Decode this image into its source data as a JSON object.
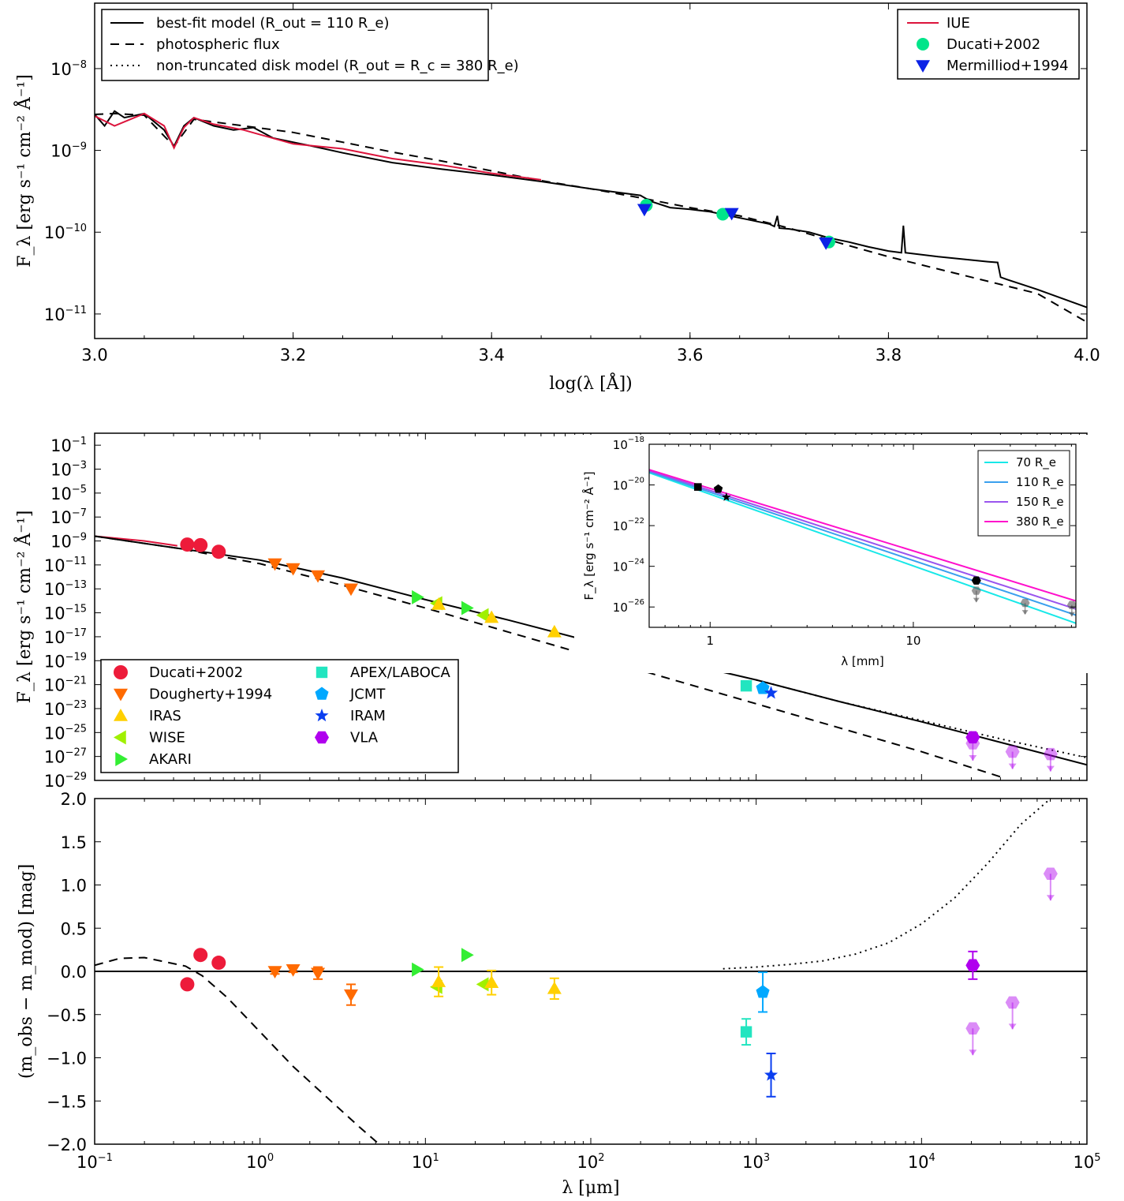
{
  "chart_data": [
    {
      "panel": "top",
      "type": "line",
      "xlabel": "log(λ [Å])",
      "ylabel": "F_λ [erg s⁻¹ cm⁻² Å⁻¹]",
      "xlim": [
        3.0,
        4.0
      ],
      "ylim_log10": [
        -11.3,
        -7.2
      ],
      "y_scale": "log",
      "x_ticks": [
        "3.0",
        "3.2",
        "3.4",
        "3.6",
        "3.8",
        "4.0"
      ],
      "y_ticks": [
        {
          "base": "10",
          "exp": "-8",
          "v": -8
        },
        {
          "base": "10",
          "exp": "-9",
          "v": -9
        },
        {
          "base": "10",
          "exp": "-10",
          "v": -10
        },
        {
          "base": "10",
          "exp": "-11",
          "v": -11
        }
      ],
      "legend_left": [
        {
          "label": "best-fit model (R_out = 110 R_e)",
          "style": "solid"
        },
        {
          "label": "photospheric flux",
          "style": "dashed"
        },
        {
          "label": "non-truncated disk model (R_out = R_c = 380 R_e)",
          "style": "dotted"
        }
      ],
      "legend_right": [
        {
          "label": "IUE",
          "color": "#dc143c",
          "marker": "line"
        },
        {
          "label": "Ducati+2002",
          "color": "#00e58a",
          "marker": "circle"
        },
        {
          "label": "Mermilliod+1994",
          "color": "#0b22e6",
          "marker": "down-triangle"
        }
      ],
      "series": [
        {
          "name": "best-fit model",
          "style": "solid",
          "x": [
            3.0,
            3.01,
            3.02,
            3.03,
            3.05,
            3.07,
            3.08,
            3.09,
            3.1,
            3.12,
            3.14,
            3.16,
            3.18,
            3.2,
            3.22,
            3.25,
            3.3,
            3.35,
            3.4,
            3.45,
            3.5,
            3.55,
            3.56,
            3.58,
            3.6,
            3.62,
            3.64,
            3.66,
            3.68,
            3.685,
            3.688,
            3.69,
            3.7,
            3.72,
            3.74,
            3.76,
            3.78,
            3.8,
            3.813,
            3.815,
            3.817,
            3.85,
            3.9,
            3.91,
            3.913,
            3.92,
            3.95,
            4.0
          ],
          "y_log10": [
            -8.56,
            -8.7,
            -8.52,
            -8.6,
            -8.55,
            -8.75,
            -8.95,
            -8.7,
            -8.6,
            -8.7,
            -8.75,
            -8.72,
            -8.85,
            -8.9,
            -8.95,
            -9.03,
            -9.15,
            -9.23,
            -9.3,
            -9.38,
            -9.47,
            -9.55,
            -9.62,
            -9.7,
            -9.72,
            -9.75,
            -9.8,
            -9.85,
            -9.9,
            -9.93,
            -9.8,
            -9.95,
            -9.96,
            -10.0,
            -10.07,
            -10.12,
            -10.18,
            -10.23,
            -10.25,
            -9.92,
            -10.25,
            -10.3,
            -10.36,
            -10.37,
            -10.55,
            -10.58,
            -10.7,
            -10.92
          ]
        },
        {
          "name": "photospheric flux",
          "style": "dashed",
          "x": [
            3.0,
            3.02,
            3.05,
            3.08,
            3.1,
            3.15,
            3.2,
            3.25,
            3.3,
            3.35,
            3.4,
            3.45,
            3.5,
            3.55,
            3.6,
            3.65,
            3.7,
            3.75,
            3.8,
            3.85,
            3.9,
            3.95,
            4.0
          ],
          "y_log10": [
            -8.56,
            -8.55,
            -8.57,
            -8.95,
            -8.62,
            -8.7,
            -8.78,
            -8.9,
            -9.02,
            -9.13,
            -9.25,
            -9.37,
            -9.47,
            -9.58,
            -9.7,
            -9.8,
            -9.95,
            -10.13,
            -10.3,
            -10.45,
            -10.6,
            -10.75,
            -11.1
          ]
        },
        {
          "name": "IUE",
          "style": "solid",
          "color": "#dc143c",
          "x": [
            3.0,
            3.02,
            3.05,
            3.07,
            3.08,
            3.09,
            3.1,
            3.12,
            3.15,
            3.2,
            3.25,
            3.3,
            3.35,
            3.4,
            3.45
          ],
          "y_log10": [
            -8.58,
            -8.7,
            -8.55,
            -8.7,
            -8.97,
            -8.72,
            -8.6,
            -8.68,
            -8.75,
            -8.92,
            -8.98,
            -9.1,
            -9.18,
            -9.28,
            -9.36
          ]
        }
      ],
      "points": [
        {
          "set": "Ducati+2002",
          "x": [
            3.556,
            3.633,
            3.74
          ],
          "y_log10": [
            -9.67,
            -9.78,
            -10.12
          ]
        },
        {
          "set": "Mermilliod+1994",
          "x": [
            3.554,
            3.642,
            3.737
          ],
          "y_log10": [
            -9.72,
            -9.77,
            -10.13
          ]
        }
      ]
    },
    {
      "panel": "middle",
      "type": "scatter",
      "xlabel": "",
      "ylabel": "F_λ [erg s⁻¹ cm⁻² Å⁻¹]",
      "x_scale": "log",
      "xlim_log10": [
        -1,
        5
      ],
      "ylim_log10": [
        -29,
        0
      ],
      "y_ticks": [
        {
          "base": "10",
          "exp": "-1",
          "v": -1
        },
        {
          "base": "10",
          "exp": "-3",
          "v": -3
        },
        {
          "base": "10",
          "exp": "-5",
          "v": -5
        },
        {
          "base": "10",
          "exp": "-7",
          "v": -7
        },
        {
          "base": "10",
          "exp": "-9",
          "v": -9
        },
        {
          "base": "10",
          "exp": "-11",
          "v": -11
        },
        {
          "base": "10",
          "exp": "-13",
          "v": -13
        },
        {
          "base": "10",
          "exp": "-15",
          "v": -15
        },
        {
          "base": "10",
          "exp": "-17",
          "v": -17
        },
        {
          "base": "10",
          "exp": "-19",
          "v": -19
        },
        {
          "base": "10",
          "exp": "-21",
          "v": -21
        },
        {
          "base": "10",
          "exp": "-23",
          "v": -23
        },
        {
          "base": "10",
          "exp": "-25",
          "v": -25
        },
        {
          "base": "10",
          "exp": "-27",
          "v": -27
        },
        {
          "base": "10",
          "exp": "-29",
          "v": -29
        }
      ],
      "series": [
        {
          "name": "best-fit model",
          "style": "solid",
          "x_log10": [
            -1.0,
            -0.5,
            0.0,
            0.5,
            1.0,
            1.5,
            2.0,
            2.5,
            3.0,
            3.5,
            4.0,
            4.5,
            5.0
          ],
          "y_log10": [
            -8.6,
            -9.6,
            -10.6,
            -12.1,
            -13.9,
            -15.6,
            -17.4,
            -19.0,
            -20.6,
            -22.4,
            -24.1,
            -25.9,
            -27.7
          ]
        },
        {
          "name": "photospheric flux",
          "style": "dashed",
          "x_log10": [
            -1.0,
            -0.5,
            0.0,
            0.5,
            1.0,
            1.5,
            2.0,
            2.5,
            3.0,
            3.5,
            4.0,
            4.5
          ],
          "y_log10": [
            -8.6,
            -9.6,
            -10.9,
            -12.7,
            -14.6,
            -16.6,
            -18.6,
            -20.6,
            -22.6,
            -24.6,
            -26.6,
            -28.8
          ]
        },
        {
          "name": "non-truncated disk model",
          "style": "dotted",
          "x_log10": [
            3.0,
            3.5,
            4.0,
            4.5,
            5.0
          ],
          "y_log10": [
            -20.6,
            -22.4,
            -24.0,
            -25.6,
            -27.1
          ]
        }
      ],
      "legend": [
        {
          "label": "Ducati+2002",
          "color": "#ed1b3a",
          "marker": "circle"
        },
        {
          "label": "Dougherty+1994",
          "color": "#ff6a00",
          "marker": "down-triangle"
        },
        {
          "label": "IRAS",
          "color": "#ffd000",
          "marker": "up-triangle"
        },
        {
          "label": "WISE",
          "color": "#a0f000",
          "marker": "left-triangle"
        },
        {
          "label": "AKARI",
          "color": "#33ee33",
          "marker": "right-triangle"
        },
        {
          "label": "APEX/LABOCA",
          "color": "#22e5c0",
          "marker": "square"
        },
        {
          "label": "JCMT",
          "color": "#00a8ff",
          "marker": "pentagon"
        },
        {
          "label": "IRAM",
          "color": "#0a3ef0",
          "marker": "star"
        },
        {
          "label": "VLA",
          "color": "#b000ee",
          "marker": "hexagon"
        }
      ],
      "points": [
        {
          "set": "Ducati+2002",
          "x_log10": [
            -0.44,
            -0.36,
            -0.25
          ],
          "y_log10": [
            -9.3,
            -9.35,
            -9.9
          ]
        },
        {
          "set": "Dougherty+1994",
          "x_log10": [
            0.09,
            0.2,
            0.35,
            0.55
          ],
          "y_log10": [
            -10.9,
            -11.3,
            -11.9,
            -13.0
          ]
        },
        {
          "set": "AKARI",
          "x_log10": [
            0.95,
            1.25
          ],
          "y_log10": [
            -13.7,
            -14.6
          ]
        },
        {
          "set": "WISE",
          "x_log10": [
            1.07,
            1.35
          ],
          "y_log10": [
            -14.2,
            -15.2
          ]
        },
        {
          "set": "IRAS",
          "x_log10": [
            1.08,
            1.4,
            1.78
          ],
          "y_log10": [
            -14.3,
            -15.4,
            -16.6
          ]
        },
        {
          "set": "APEX/LABOCA",
          "x_log10": [
            2.94
          ],
          "y_log10": [
            -21.1
          ]
        },
        {
          "set": "JCMT",
          "x_log10": [
            3.04
          ],
          "y_log10": [
            -21.3
          ]
        },
        {
          "set": "IRAM",
          "x_log10": [
            3.09
          ],
          "y_log10": [
            -21.7
          ]
        },
        {
          "set": "VLA",
          "x_log10": [
            4.31
          ],
          "y_log10": [
            -25.4
          ]
        },
        {
          "set": "VLA upper limits",
          "x_log10": [
            4.31,
            4.55,
            4.78
          ],
          "y_log10": [
            -25.9,
            -26.6,
            -26.8
          ]
        }
      ]
    },
    {
      "panel": "inset",
      "type": "line",
      "xlabel": "λ [mm]",
      "ylabel": "F_λ [erg s⁻¹ cm⁻² Å⁻¹]",
      "x_scale": "log",
      "xlim_log10": [
        -0.3,
        1.8
      ],
      "ylim_log10": [
        -27,
        -18
      ],
      "x_ticks": [
        {
          "label": "1",
          "v": 0
        },
        {
          "label": "10",
          "v": 1
        }
      ],
      "y_ticks": [
        {
          "base": "10",
          "exp": "-18",
          "v": -18
        },
        {
          "base": "10",
          "exp": "-20",
          "v": -20
        },
        {
          "base": "10",
          "exp": "-22",
          "v": -22
        },
        {
          "base": "10",
          "exp": "-24",
          "v": -24
        },
        {
          "base": "10",
          "exp": "-26",
          "v": -26
        }
      ],
      "legend": [
        {
          "label": "70",
          "unit": "R_e",
          "color": "#18e8e8"
        },
        {
          "label": "110",
          "unit": "R_e",
          "color": "#3aa0ee"
        },
        {
          "label": "150",
          "unit": "R_e",
          "color": "#9a55ee"
        },
        {
          "label": "380",
          "unit": "R_e",
          "color": "#ff10cc"
        }
      ],
      "series": [
        {
          "name": "70",
          "x_log10": [
            -0.3,
            1.8
          ],
          "y_log10": [
            -19.4,
            -26.8
          ]
        },
        {
          "name": "110",
          "x_log10": [
            -0.3,
            1.8
          ],
          "y_log10": [
            -19.35,
            -26.4
          ]
        },
        {
          "name": "150",
          "x_log10": [
            -0.3,
            1.8
          ],
          "y_log10": [
            -19.3,
            -26.1
          ]
        },
        {
          "name": "380",
          "x_log10": [
            -0.3,
            1.8
          ],
          "y_log10": [
            -19.25,
            -25.7
          ]
        }
      ],
      "points": [
        {
          "set": "APEX/LABOCA",
          "x_log10": [
            -0.06
          ],
          "y_log10": [
            -20.1
          ]
        },
        {
          "set": "JCMT",
          "x_log10": [
            0.04
          ],
          "y_log10": [
            -20.2
          ]
        },
        {
          "set": "IRAM",
          "x_log10": [
            0.08
          ],
          "y_log10": [
            -20.6
          ]
        },
        {
          "set": "VLA",
          "x_log10": [
            1.31
          ],
          "y_log10": [
            -24.7
          ]
        },
        {
          "set": "VLA upper limits",
          "x_log10": [
            1.31,
            1.55,
            1.78
          ],
          "y_log10": [
            -25.2,
            -25.8,
            -25.9
          ]
        }
      ]
    },
    {
      "panel": "bottom",
      "type": "scatter",
      "xlabel": "λ [μm]",
      "ylabel": "(m_obs − m_mod) [mag]",
      "x_scale": "log",
      "xlim_log10": [
        -1,
        5
      ],
      "ylim": [
        -2.0,
        2.0
      ],
      "x_ticks": [
        {
          "base": "10",
          "exp": "-1",
          "v": -1
        },
        {
          "base": "10",
          "exp": "0",
          "v": 0
        },
        {
          "base": "10",
          "exp": "1",
          "v": 1
        },
        {
          "base": "10",
          "exp": "2",
          "v": 2
        },
        {
          "base": "10",
          "exp": "3",
          "v": 3
        },
        {
          "base": "10",
          "exp": "4",
          "v": 4
        },
        {
          "base": "10",
          "exp": "5",
          "v": 5
        }
      ],
      "y_ticks": [
        "2.0",
        "1.5",
        "1.0",
        "0.5",
        "0.0",
        "−0.5",
        "−1.0",
        "−1.5",
        "−2.0"
      ],
      "series": [
        {
          "name": "photospheric flux",
          "style": "dashed",
          "x_log10": [
            -1.0,
            -0.85,
            -0.7,
            -0.55,
            -0.45,
            -0.35,
            -0.2,
            0.0,
            0.2,
            0.4,
            0.6,
            0.72
          ],
          "y": [
            0.07,
            0.15,
            0.16,
            0.1,
            0.06,
            -0.05,
            -0.3,
            -0.7,
            -1.1,
            -1.45,
            -1.8,
            -2.0
          ]
        },
        {
          "name": "non-truncated disk model",
          "style": "dotted",
          "x_log10": [
            2.8,
            3.0,
            3.2,
            3.4,
            3.6,
            3.8,
            4.0,
            4.2,
            4.4,
            4.6,
            4.78
          ],
          "y": [
            0.03,
            0.05,
            0.08,
            0.12,
            0.2,
            0.33,
            0.55,
            0.85,
            1.25,
            1.7,
            2.0
          ]
        },
        {
          "name": "zero",
          "style": "solid",
          "x_log10": [
            -1,
            5
          ],
          "y": [
            0,
            0
          ]
        }
      ],
      "points": [
        {
          "set": "Ducati+2002",
          "x_log10": [
            -0.44,
            -0.36,
            -0.25
          ],
          "y": [
            -0.15,
            0.19,
            0.1
          ]
        },
        {
          "set": "Dougherty+1994",
          "x_log10": [
            0.09,
            0.2,
            0.35,
            0.55
          ],
          "y": [
            0.0,
            0.02,
            -0.02,
            -0.27
          ],
          "err": [
            0.03,
            0.03,
            0.07,
            0.12
          ]
        },
        {
          "set": "AKARI",
          "x_log10": [
            0.95,
            1.25
          ],
          "y": [
            0.02,
            0.19
          ]
        },
        {
          "set": "WISE",
          "x_log10": [
            1.07,
            1.35
          ],
          "y": [
            -0.18,
            -0.15
          ]
        },
        {
          "set": "IRAS",
          "x_log10": [
            1.08,
            1.4,
            1.78
          ],
          "y": [
            -0.12,
            -0.13,
            -0.2
          ],
          "err": [
            0.17,
            0.14,
            0.12
          ]
        },
        {
          "set": "APEX/LABOCA",
          "x_log10": [
            2.94
          ],
          "y": [
            -0.7
          ],
          "err": [
            0.15
          ]
        },
        {
          "set": "JCMT",
          "x_log10": [
            3.04
          ],
          "y": [
            -0.24
          ],
          "err": [
            0.23
          ]
        },
        {
          "set": "IRAM",
          "x_log10": [
            3.09
          ],
          "y": [
            -1.2
          ],
          "err": [
            0.25
          ]
        },
        {
          "set": "VLA",
          "x_log10": [
            4.31
          ],
          "y": [
            0.07
          ],
          "err": [
            0.16
          ]
        },
        {
          "set": "VLA upper limits",
          "x_log10": [
            4.31,
            4.55,
            4.78
          ],
          "y": [
            -0.66,
            -0.36,
            1.13
          ]
        }
      ]
    }
  ]
}
